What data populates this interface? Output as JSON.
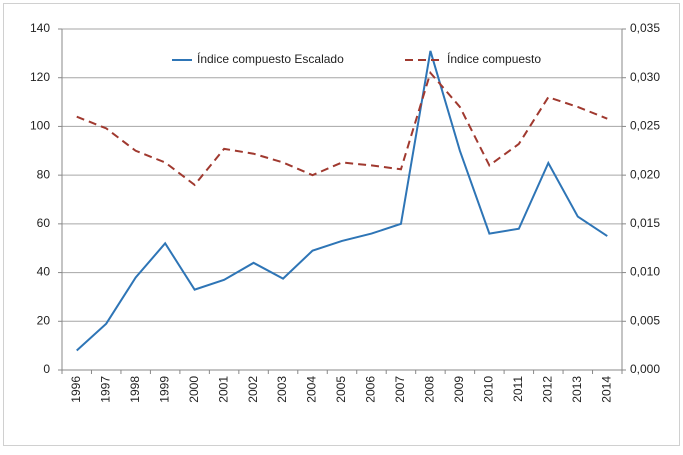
{
  "chart_data": {
    "type": "line",
    "categories": [
      "1996",
      "1997",
      "1998",
      "1999",
      "2000",
      "2001",
      "2002",
      "2003",
      "2004",
      "2005",
      "2006",
      "2007",
      "2008",
      "2009",
      "2010",
      "2011",
      "2012",
      "2013",
      "2014"
    ],
    "series": [
      {
        "name": "Índice compuesto Escalado",
        "color": "#2e75b6",
        "dash": "solid",
        "values": [
          8,
          19,
          38,
          52,
          33,
          37,
          44,
          37.5,
          49,
          53,
          56,
          60,
          131,
          90,
          56,
          58,
          85,
          63,
          55
        ]
      },
      {
        "name": "Índice compuesto",
        "color": "#a0392f",
        "dash": "dashed",
        "axis": "y2",
        "values": [
          0.026,
          0.0248,
          0.0225,
          0.0213,
          0.019,
          0.0227,
          0.0222,
          0.0213,
          0.02,
          0.0213,
          0.021,
          0.0206,
          0.0305,
          0.027,
          0.021,
          0.0232,
          0.028,
          0.027,
          0.0258
        ]
      }
    ],
    "ylim": [
      0,
      140
    ],
    "yticks": [
      0,
      20,
      40,
      60,
      80,
      100,
      120,
      140
    ],
    "y2lim": [
      0,
      0.035
    ],
    "y2ticks": [
      {
        "value": 0,
        "label": "0,000"
      },
      {
        "value": 0.005,
        "label": "0,005"
      },
      {
        "value": 0.01,
        "label": "0,010"
      },
      {
        "value": 0.015,
        "label": "0,015"
      },
      {
        "value": 0.02,
        "label": "0,020"
      },
      {
        "value": 0.025,
        "label": "0,025"
      },
      {
        "value": 0.03,
        "label": "0,030"
      },
      {
        "value": 0.035,
        "label": "0,035"
      }
    ],
    "grid": true,
    "legend": "top"
  }
}
